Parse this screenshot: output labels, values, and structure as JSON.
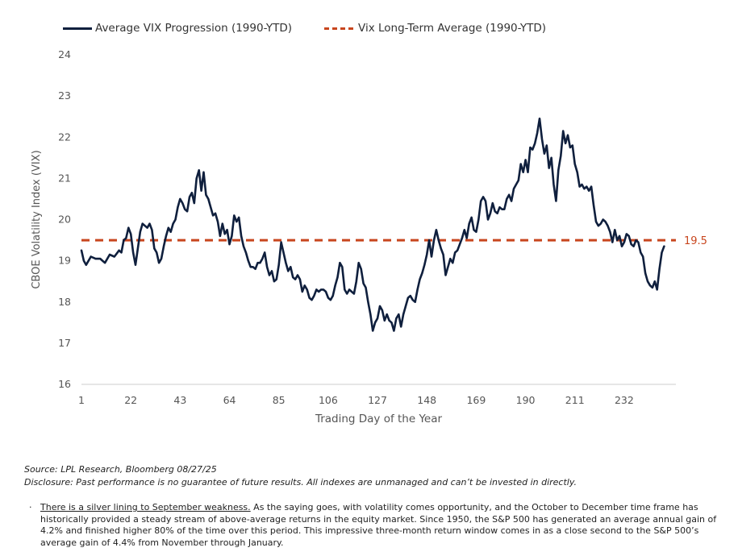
{
  "chart_data": {
    "type": "line",
    "title": "",
    "xlabel": "Trading Day of the Year",
    "ylabel": "CBOE Volatility Index (VIX)",
    "xlim": [
      1,
      254
    ],
    "ylim": [
      16,
      24
    ],
    "x_ticks": [
      1,
      22,
      43,
      64,
      85,
      106,
      127,
      148,
      169,
      190,
      211,
      232
    ],
    "y_ticks": [
      16,
      17,
      18,
      19,
      20,
      21,
      22,
      23,
      24
    ],
    "grid": false,
    "legend_position": "top-left",
    "series": [
      {
        "name": "Average VIX Progression (1990-YTD)",
        "color": "#0f1f3d",
        "style": "solid",
        "points": [
          [
            1,
            19.25
          ],
          [
            2,
            19.0
          ],
          [
            3,
            18.9
          ],
          [
            5,
            19.1
          ],
          [
            7,
            19.05
          ],
          [
            9,
            19.05
          ],
          [
            11,
            18.95
          ],
          [
            13,
            19.15
          ],
          [
            15,
            19.1
          ],
          [
            17,
            19.25
          ],
          [
            18,
            19.2
          ],
          [
            19,
            19.5
          ],
          [
            20,
            19.55
          ],
          [
            21,
            19.8
          ],
          [
            22,
            19.65
          ],
          [
            23,
            19.2
          ],
          [
            24,
            18.9
          ],
          [
            25,
            19.3
          ],
          [
            26,
            19.7
          ],
          [
            27,
            19.9
          ],
          [
            28,
            19.85
          ],
          [
            29,
            19.8
          ],
          [
            30,
            19.9
          ],
          [
            31,
            19.75
          ],
          [
            32,
            19.3
          ],
          [
            33,
            19.2
          ],
          [
            34,
            18.95
          ],
          [
            35,
            19.05
          ],
          [
            36,
            19.35
          ],
          [
            37,
            19.6
          ],
          [
            38,
            19.8
          ],
          [
            39,
            19.7
          ],
          [
            40,
            19.9
          ],
          [
            41,
            20.0
          ],
          [
            42,
            20.3
          ],
          [
            43,
            20.5
          ],
          [
            44,
            20.4
          ],
          [
            45,
            20.25
          ],
          [
            46,
            20.2
          ],
          [
            47,
            20.55
          ],
          [
            48,
            20.65
          ],
          [
            49,
            20.4
          ],
          [
            50,
            21.0
          ],
          [
            51,
            21.2
          ],
          [
            52,
            20.7
          ],
          [
            53,
            21.15
          ],
          [
            54,
            20.6
          ],
          [
            55,
            20.5
          ],
          [
            56,
            20.3
          ],
          [
            57,
            20.1
          ],
          [
            58,
            20.15
          ],
          [
            59,
            19.95
          ],
          [
            60,
            19.6
          ],
          [
            61,
            19.9
          ],
          [
            62,
            19.65
          ],
          [
            63,
            19.75
          ],
          [
            64,
            19.4
          ],
          [
            65,
            19.6
          ],
          [
            66,
            20.1
          ],
          [
            67,
            19.95
          ],
          [
            68,
            20.05
          ],
          [
            69,
            19.6
          ],
          [
            70,
            19.35
          ],
          [
            71,
            19.2
          ],
          [
            72,
            19.0
          ],
          [
            73,
            18.85
          ],
          [
            74,
            18.85
          ],
          [
            75,
            18.8
          ],
          [
            76,
            18.95
          ],
          [
            77,
            18.95
          ],
          [
            78,
            19.05
          ],
          [
            79,
            19.2
          ],
          [
            80,
            18.85
          ],
          [
            81,
            18.65
          ],
          [
            82,
            18.75
          ],
          [
            83,
            18.5
          ],
          [
            84,
            18.55
          ],
          [
            85,
            18.9
          ],
          [
            86,
            19.45
          ],
          [
            87,
            19.2
          ],
          [
            88,
            18.95
          ],
          [
            89,
            18.75
          ],
          [
            90,
            18.85
          ],
          [
            91,
            18.6
          ],
          [
            92,
            18.55
          ],
          [
            93,
            18.65
          ],
          [
            94,
            18.55
          ],
          [
            95,
            18.25
          ],
          [
            96,
            18.4
          ],
          [
            97,
            18.3
          ],
          [
            98,
            18.1
          ],
          [
            99,
            18.05
          ],
          [
            100,
            18.15
          ],
          [
            101,
            18.3
          ],
          [
            102,
            18.25
          ],
          [
            103,
            18.3
          ],
          [
            104,
            18.3
          ],
          [
            105,
            18.25
          ],
          [
            106,
            18.1
          ],
          [
            107,
            18.05
          ],
          [
            108,
            18.15
          ],
          [
            109,
            18.4
          ],
          [
            110,
            18.6
          ],
          [
            111,
            18.95
          ],
          [
            112,
            18.85
          ],
          [
            113,
            18.3
          ],
          [
            114,
            18.2
          ],
          [
            115,
            18.3
          ],
          [
            116,
            18.25
          ],
          [
            117,
            18.2
          ],
          [
            118,
            18.5
          ],
          [
            119,
            18.95
          ],
          [
            120,
            18.8
          ],
          [
            121,
            18.45
          ],
          [
            122,
            18.35
          ],
          [
            123,
            18.0
          ],
          [
            124,
            17.7
          ],
          [
            125,
            17.3
          ],
          [
            126,
            17.5
          ],
          [
            127,
            17.6
          ],
          [
            128,
            17.9
          ],
          [
            129,
            17.8
          ],
          [
            130,
            17.55
          ],
          [
            131,
            17.7
          ],
          [
            132,
            17.55
          ],
          [
            133,
            17.5
          ],
          [
            134,
            17.3
          ],
          [
            135,
            17.6
          ],
          [
            136,
            17.7
          ],
          [
            137,
            17.4
          ],
          [
            138,
            17.7
          ],
          [
            139,
            17.9
          ],
          [
            140,
            18.1
          ],
          [
            141,
            18.15
          ],
          [
            142,
            18.05
          ],
          [
            143,
            18.0
          ],
          [
            144,
            18.3
          ],
          [
            145,
            18.55
          ],
          [
            146,
            18.7
          ],
          [
            147,
            18.9
          ],
          [
            148,
            19.15
          ],
          [
            149,
            19.5
          ],
          [
            150,
            19.1
          ],
          [
            151,
            19.5
          ],
          [
            152,
            19.75
          ],
          [
            153,
            19.5
          ],
          [
            154,
            19.3
          ],
          [
            155,
            19.15
          ],
          [
            156,
            18.65
          ],
          [
            157,
            18.85
          ],
          [
            158,
            19.05
          ],
          [
            159,
            18.95
          ],
          [
            160,
            19.2
          ],
          [
            161,
            19.25
          ],
          [
            162,
            19.4
          ],
          [
            163,
            19.55
          ],
          [
            164,
            19.75
          ],
          [
            165,
            19.55
          ],
          [
            166,
            19.9
          ],
          [
            167,
            20.05
          ],
          [
            168,
            19.75
          ],
          [
            169,
            19.7
          ],
          [
            170,
            20.0
          ],
          [
            171,
            20.45
          ],
          [
            172,
            20.55
          ],
          [
            173,
            20.45
          ],
          [
            174,
            20.0
          ],
          [
            175,
            20.15
          ],
          [
            176,
            20.4
          ],
          [
            177,
            20.2
          ],
          [
            178,
            20.15
          ],
          [
            179,
            20.3
          ],
          [
            180,
            20.25
          ],
          [
            181,
            20.25
          ],
          [
            182,
            20.5
          ],
          [
            183,
            20.6
          ],
          [
            184,
            20.45
          ],
          [
            185,
            20.75
          ],
          [
            186,
            20.85
          ],
          [
            187,
            20.95
          ],
          [
            188,
            21.35
          ],
          [
            189,
            21.15
          ],
          [
            190,
            21.45
          ],
          [
            191,
            21.15
          ],
          [
            192,
            21.75
          ],
          [
            193,
            21.7
          ],
          [
            194,
            21.85
          ],
          [
            195,
            22.1
          ],
          [
            196,
            22.45
          ],
          [
            197,
            21.95
          ],
          [
            198,
            21.6
          ],
          [
            199,
            21.8
          ],
          [
            200,
            21.25
          ],
          [
            201,
            21.5
          ],
          [
            202,
            20.85
          ],
          [
            203,
            20.45
          ],
          [
            204,
            21.2
          ],
          [
            205,
            21.55
          ],
          [
            206,
            22.15
          ],
          [
            207,
            21.85
          ],
          [
            208,
            22.05
          ],
          [
            209,
            21.75
          ],
          [
            210,
            21.8
          ],
          [
            211,
            21.35
          ],
          [
            212,
            21.15
          ],
          [
            213,
            20.8
          ],
          [
            214,
            20.85
          ],
          [
            215,
            20.75
          ],
          [
            216,
            20.8
          ],
          [
            217,
            20.7
          ],
          [
            218,
            20.8
          ],
          [
            219,
            20.35
          ],
          [
            220,
            19.95
          ],
          [
            221,
            19.85
          ],
          [
            222,
            19.9
          ],
          [
            223,
            20.0
          ],
          [
            224,
            19.95
          ],
          [
            225,
            19.85
          ],
          [
            226,
            19.7
          ],
          [
            227,
            19.45
          ],
          [
            228,
            19.75
          ],
          [
            229,
            19.5
          ],
          [
            230,
            19.6
          ],
          [
            231,
            19.35
          ],
          [
            232,
            19.45
          ],
          [
            233,
            19.65
          ],
          [
            234,
            19.6
          ],
          [
            235,
            19.4
          ],
          [
            236,
            19.35
          ],
          [
            237,
            19.5
          ],
          [
            238,
            19.45
          ],
          [
            239,
            19.2
          ],
          [
            240,
            19.1
          ],
          [
            241,
            18.7
          ],
          [
            242,
            18.5
          ],
          [
            243,
            18.4
          ],
          [
            244,
            18.35
          ],
          [
            245,
            18.5
          ],
          [
            246,
            18.3
          ],
          [
            247,
            18.8
          ],
          [
            248,
            19.2
          ],
          [
            249,
            19.35
          ]
        ]
      },
      {
        "name": "Vix Long-Term Average (1990-YTD)",
        "color": "#c8461e",
        "style": "dashed",
        "value": 19.5,
        "x_range": [
          1,
          254
        ]
      }
    ],
    "annotations": [
      {
        "text": "19.5",
        "color": "#c8461e"
      }
    ]
  },
  "legend": {
    "series_1": "Average VIX Progression (1990-YTD)",
    "series_2": "Vix Long-Term Average (1990-YTD)"
  },
  "source": "Source: LPL Research, Bloomberg 08/27/25",
  "disclosure": "Disclosure: Past performance is no guarantee of future results. All indexes are unmanaged and can’t be invested in directly.",
  "bullet": {
    "mark": "·",
    "lead": "There is a silver lining to September weakness.",
    "text": " As the saying goes, with volatility comes opportunity, and the October to December time frame has historically provided a steady stream of above-average returns in the equity market. Since 1950, the S&P 500 has generated an average annual gain of 4.2% and finished higher 80% of the time over this period. This impressive three-month return window comes in as a close second to the S&P 500’s average gain of 4.4% from November through January."
  }
}
